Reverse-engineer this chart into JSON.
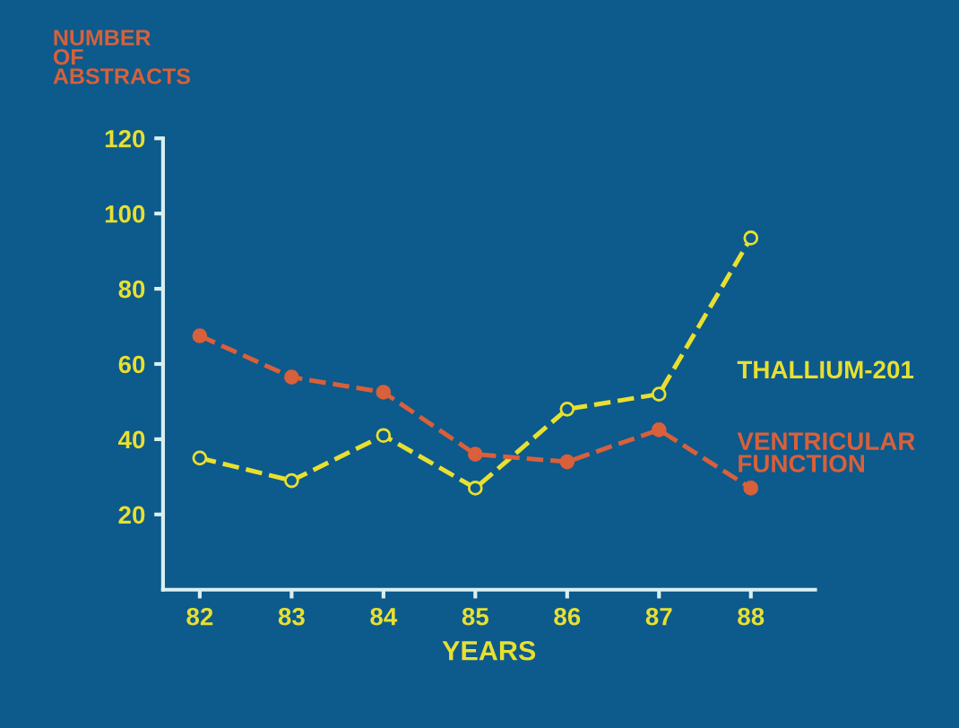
{
  "chart_data": {
    "type": "line",
    "ylabel": "NUMBER\nOF\nABSTRACTS",
    "xlabel": "YEARS",
    "categories": [
      "82",
      "83",
      "84",
      "85",
      "86",
      "87",
      "88"
    ],
    "series": [
      {
        "name": "THALLIUM-201",
        "color": "#e8e030",
        "values": [
          35,
          29,
          41,
          27,
          48,
          52,
          93.5
        ]
      },
      {
        "name": "VENTRICULAR\nFUNCTION",
        "color": "#d8603a",
        "values": [
          67.5,
          56.5,
          52.5,
          36,
          34,
          42.5,
          27
        ]
      }
    ],
    "ylim": [
      0,
      120
    ],
    "yticks": [
      20,
      40,
      60,
      80,
      100,
      120
    ],
    "grid": false,
    "legend": false,
    "marker": "circle",
    "line_style": "dashed"
  }
}
